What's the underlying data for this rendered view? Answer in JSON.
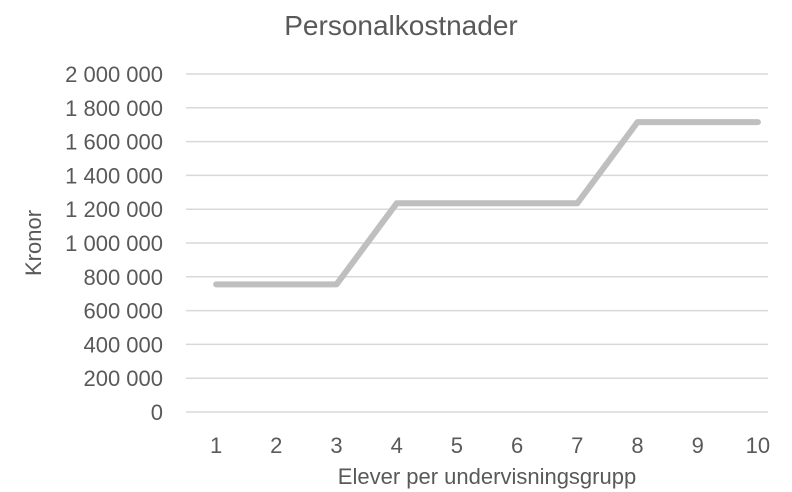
{
  "chart_data": {
    "type": "line",
    "title": "Personalkostnader",
    "xlabel": "Elever per undervisningsgrupp",
    "ylabel": "Kronor",
    "categories": [
      "1",
      "2",
      "3",
      "4",
      "5",
      "6",
      "7",
      "8",
      "9",
      "10"
    ],
    "series": [
      {
        "values": [
          755000,
          755000,
          755000,
          1235000,
          1235000,
          1235000,
          1235000,
          1715000,
          1715000,
          1715000
        ],
        "color": "#bfbfbf"
      }
    ],
    "ylim": [
      0,
      2000000
    ],
    "yticks": [
      0,
      200000,
      400000,
      600000,
      800000,
      1000000,
      1200000,
      1400000,
      1600000,
      1800000,
      2000000
    ],
    "ytick_labels": [
      "0",
      "200 000",
      "400 000",
      "600 000",
      "800 000",
      "1 000 000",
      "1 200 000",
      "1 400 000",
      "1 600 000",
      "1 800 000",
      "2 000 000"
    ],
    "grid": true,
    "legend": "none"
  }
}
